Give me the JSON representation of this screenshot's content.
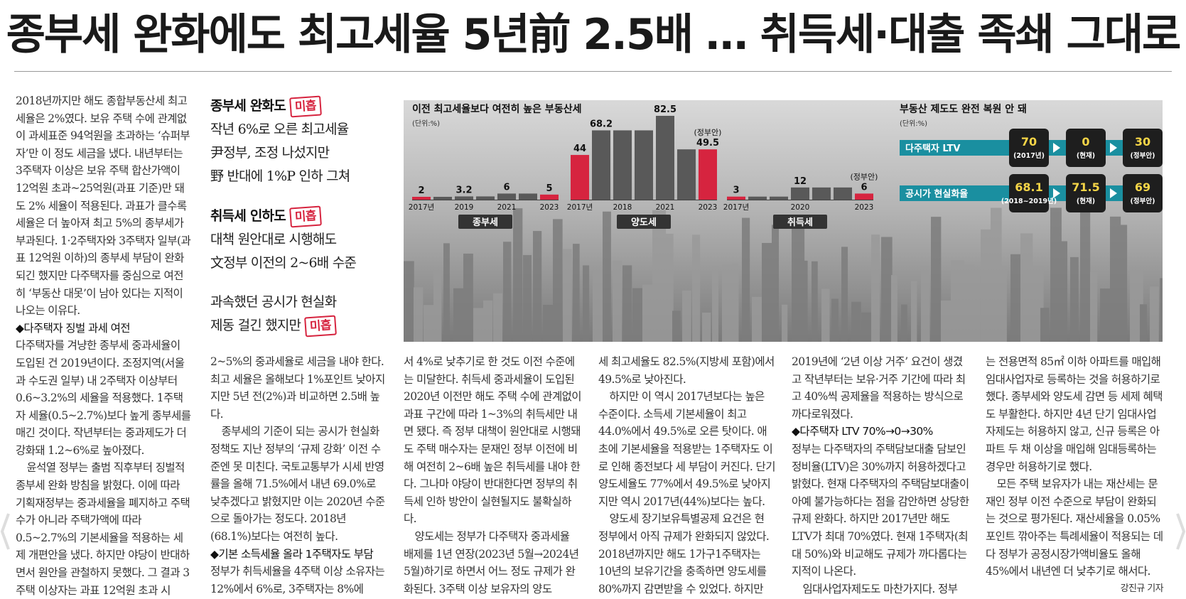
{
  "headline": "종부세 완화에도 최고세율 5년前 2.5배 … 취득세·대출 족쇄 그대로",
  "columns": {
    "c1": [
      {
        "t": "2018년까지만 해도 종합부동산세 최고세율은 2%였다. 보유 주택 수에 관계없이 과세표준 94억원을 초과하는 ‘슈퍼부자’만 이 정도 세금을 냈다. 내년부터는 3주택자 이상은 보유 주택 합산가액이 12억원 초과~25억원(과표 기준)만 돼도 2% 세율이 적용된다. 과표가 클수록 세율은 더 높아져 최고 5%의 종부세가 부과된다. 1·2주택자와 3주택자 일부(과표 12억원 이하)의 종부세 부담이 완화되긴 했지만 다주택자를 중심으로 여전히 ‘부동산 대못’이 남아 있다는 지적이 나오는 이유다.",
        "c": ""
      },
      {
        "t": "◆다주택자 징벌 과세 여전",
        "c": "sub"
      },
      {
        "t": "다주택자를 겨냥한 종부세 중과세율이 도입된 건 2019년이다. 조정지역(서울과 수도권 일부) 내 2주택자 이상부터 0.6~3.2%의 세율을 적용했다. 1주택자 세율(0.5~2.7%)보다 높게 종부세를 매긴 것이다. 작년부터는 중과제도가 더 강화돼 1.2~6%로 높아졌다.",
        "c": ""
      },
      {
        "t": "윤석열 정부는 출범 직후부터 징벌적 종부세 완화 방침을 밝혔다. 이에 따라 기획재정부는 중과세율을 폐지하고 주택 수가 아니라 주택가액에 따라 0.5~2.7%의 기본세율을 적용하는 세제 개편안을 냈다. 하지만 야당이 반대하면서 원안을 관철하지 못했다. 그 결과 3주택 이상자는 과표 12억원 초과 시",
        "c": "ind"
      }
    ],
    "c2": [
      {
        "t": "2~5%의 중과세율로 세금을 내야 한다. 최고 세율은 올해보다 1%포인트 낮아지지만 5년 전(2%)과 비교하면 2.5배 높다.",
        "c": ""
      },
      {
        "t": "종부세의 기준이 되는 공시가 현실화 정책도 지난 정부의 ‘규제 강화’ 이전 수준엔 못 미친다. 국토교통부가 시세 반영률을 올해 71.5%에서 내년 69.0%로 낮추겠다고 밝혔지만 이는 2020년 수준으로 돌아가는 정도다. 2018년(68.1%)보다는 여전히 높다.",
        "c": "ind"
      },
      {
        "t": "◆기본 소득세율 올라 1주택자도 부담",
        "c": "sub"
      },
      {
        "t": "정부가 취득세율을 4주택 이상 소유자는 12%에서 6%로, 3주택자는 8%에",
        "c": ""
      }
    ],
    "c3": [
      {
        "t": "서 4%로 낮추기로 한 것도 이전 수준에는 미달한다. 취득세 중과세율이 도입된 2020년 이전만 해도 주택 수에 관계없이 과표 구간에 따라 1~3%의 취득세만 내면 됐다. 즉 정부 대책이 원안대로 시행돼도 주택 매수자는 문재인 정부 이전에 비해 여전히 2~6배 높은 취득세를 내야 한다. 그나마 야당이 반대한다면 정부의 취득세 인하 방안이 실현될지도 불확실하다.",
        "c": ""
      },
      {
        "t": "양도세는 정부가 다주택자 중과세율 배제를 1년 연장(2023년 5월→2024년 5월)하기로 하면서 어느 정도 규제가 완화된다. 3주택 이상 보유자의 양도",
        "c": "ind"
      }
    ],
    "c4": [
      {
        "t": "세 최고세율도 82.5%(지방세 포함)에서 49.5%로 낮아진다.",
        "c": ""
      },
      {
        "t": "하지만 이 역시 2017년보다는 높은 수준이다. 소득세 기본세율이 최고 44.0%에서 49.5%로 오른 탓이다. 애초에 기본세율을 적용받는 1주택자도 이로 인해 종전보다 세 부담이 커진다. 단기양도세율도 77%에서 49.5%로 낮아지지만 역시 2017년(44%)보다는 높다.",
        "c": "ind"
      },
      {
        "t": "양도세 장기보유특별공제 요건은 현 정부에서 아직 규제가 완화되지 않았다. 2018년까지만 해도 1가구1주택자는 10년의 보유기간을 충족하면 양도세를 80%까지 감면받을 수 있었다. 하지만",
        "c": "ind"
      }
    ],
    "c5": [
      {
        "t": "2019년에 ‘2년 이상 거주’ 요건이 생겼고 작년부터는 보유·거주 기간에 따라 최고 40%씩 공제율을 적용하는 방식으로 까다로워졌다.",
        "c": ""
      },
      {
        "t": "◆다주택자 LTV 70%→0→30%",
        "c": "sub"
      },
      {
        "t": "정부는 다주택자의 주택담보대출 담보인정비율(LTV)은 30%까지 허용하겠다고 밝혔다. 현재 다주택자의 주택담보대출이 아예 불가능하다는 점을 감안하면 상당한 규제 완화다. 하지만 2017년만 해도 LTV가 최대 70%였다. 현재 1주택자(최대 50%)와 비교해도 규제가 까다롭다는 지적이 나온다.",
        "c": ""
      },
      {
        "t": "임대사업자제도도 마찬가지다. 정부",
        "c": "ind"
      }
    ],
    "c6": [
      {
        "t": "는 전용면적 85㎡ 이하 아파트를 매입해 임대사업자로 등록하는 것을 허용하기로 했다. 종부세와 양도세 감면 등 세제 혜택도 부활한다. 하지만 4년 단기 임대사업자제도는 허용하지 않고, 신규 등록은 아파트 두 채 이상을 매입해 임대등록하는 경우만 허용하기로 했다.",
        "c": ""
      },
      {
        "t": "모든 주택 보유자가 내는 재산세는 문재인 정부 이전 수준으로 부담이 완화되는 것으로 평가된다. 재산세율을 0.05%포인트 깎아주는 특례세율이 적용되는 데다 정부가 공정시장가액비율도 올해 45%에서 내년엔 더 낮추기로 해서다.",
        "c": "ind"
      }
    ],
    "byline": "강진규 기자"
  },
  "sidebar": {
    "stamp": "미흡",
    "blocks": [
      {
        "head": "종부세 완화도",
        "lines": [
          "작년 6%로 오른 최고세율",
          "尹정부, 조정 나섰지만",
          "野 반대에 1%P 인하 그쳐"
        ],
        "stamp_pos": "head"
      },
      {
        "head": "취득세 인하도",
        "lines": [
          "대책 원안대로 시행해도",
          "文정부 이전의 2~6배 수준"
        ],
        "stamp_pos": "head"
      },
      {
        "head": "",
        "lines": [
          "과속했던 공시가 현실화",
          "제동 걸긴 했지만"
        ],
        "stamp_pos": "last"
      }
    ]
  },
  "chart_data": [
    {
      "type": "bar",
      "title": "이전 최고세율보다 여전히 높은 부동산세",
      "unit": "(단위:%)",
      "highlight_color": "#d6243f",
      "base_color": "#595959",
      "groups": [
        {
          "name": "종부세",
          "tick_labels": [
            "2017년",
            "2019",
            "2021",
            "2023"
          ],
          "values": [
            2,
            2,
            3.2,
            3.2,
            6,
            6,
            5
          ],
          "labels": [
            "2",
            "",
            "3.2",
            "",
            "6",
            "",
            "5"
          ],
          "highlight": [
            0,
            6
          ],
          "note": ""
        },
        {
          "name": "양도세",
          "tick_labels": [
            "2017년",
            "2018",
            "2021",
            "2023"
          ],
          "values": [
            44,
            68.2,
            68.2,
            68.2,
            82.5,
            49.5,
            49.5
          ],
          "labels": [
            "44",
            "68.2",
            "",
            "",
            "82.5",
            "",
            "49.5"
          ],
          "highlight": [
            0,
            6
          ],
          "note": "(정부안)"
        },
        {
          "name": "취득세",
          "tick_labels": [
            "2017년",
            "2020",
            "2023"
          ],
          "values": [
            3,
            3,
            3,
            12,
            12,
            12,
            6
          ],
          "labels": [
            "3",
            "",
            "",
            "12",
            "",
            "",
            "6"
          ],
          "highlight": [
            0,
            6
          ],
          "note": "(정부안)"
        }
      ]
    },
    {
      "type": "table",
      "title": "부동산 제도도 완전 복원 안 돼",
      "unit": "(단위:%)",
      "rows": [
        {
          "label": "다주택자 LTV",
          "cells": [
            {
              "v": "70",
              "s": "(2017년)"
            },
            {
              "v": "0",
              "s": "(현재)"
            },
            {
              "v": "30",
              "s": "(정부안)"
            }
          ]
        },
        {
          "label": "공시가 현실화율",
          "cells": [
            {
              "v": "68.1",
              "s": "(2018~2019년)"
            },
            {
              "v": "71.5",
              "s": "(현재)"
            },
            {
              "v": "69",
              "s": "(정부안)"
            }
          ]
        }
      ]
    }
  ]
}
